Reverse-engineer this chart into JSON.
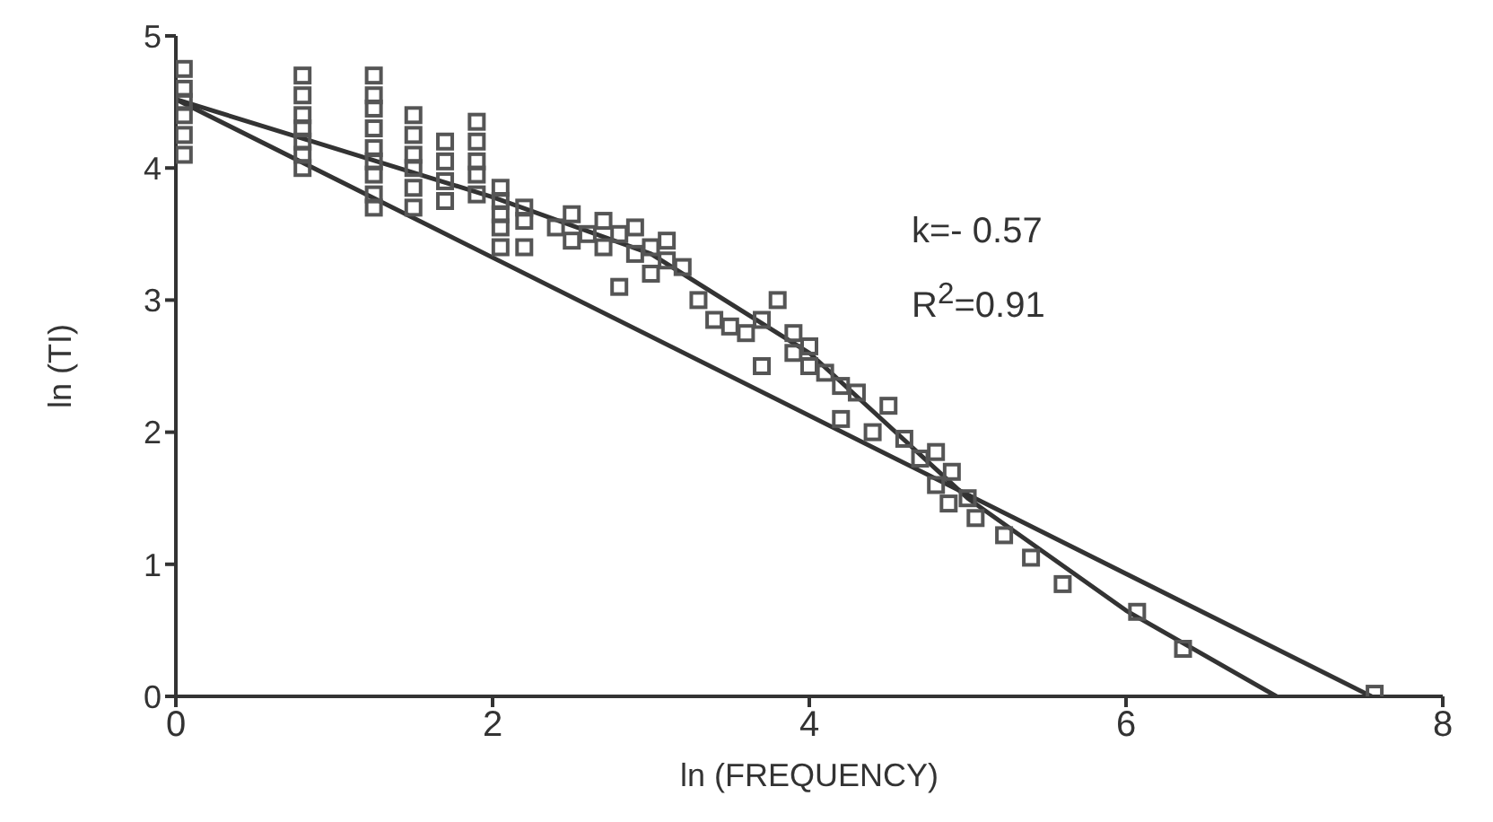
{
  "chart_data": {
    "type": "scatter",
    "xlabel": "ln (FREQUENCY)",
    "ylabel": "ln (TI)",
    "xlim": [
      0,
      8
    ],
    "xticks": [
      0,
      2,
      4,
      6,
      8
    ],
    "ylim": [
      0,
      5
    ],
    "yticks": [
      0,
      1,
      2,
      3,
      4,
      5
    ],
    "annotations": [
      "k=- 0.57",
      "R$^{2}$=0.91"
    ],
    "series": [
      {
        "marker": "square",
        "color": "#555555",
        "x": [
          0.05,
          0.05,
          0.05,
          0.05,
          0.05,
          0.05,
          0.8,
          0.8,
          0.8,
          0.8,
          0.8,
          0.8,
          0.8,
          1.25,
          1.25,
          1.25,
          1.25,
          1.25,
          1.25,
          1.25,
          1.25,
          1.25,
          1.5,
          1.5,
          1.5,
          1.5,
          1.5,
          1.5,
          1.7,
          1.7,
          1.7,
          1.7,
          1.9,
          1.9,
          1.9,
          1.9,
          1.9,
          2.05,
          2.05,
          2.05,
          2.05,
          2.05,
          2.2,
          2.2,
          2.2,
          2.4,
          2.5,
          2.5,
          2.6,
          2.7,
          2.7,
          2.8,
          2.8,
          2.9,
          2.9,
          3.0,
          3.0,
          3.1,
          3.1,
          3.2,
          3.3,
          3.4,
          3.5,
          3.6,
          3.7,
          3.7,
          3.8,
          3.9,
          3.9,
          4.0,
          4.0,
          4.1,
          4.2,
          4.2,
          4.3,
          4.4,
          4.5,
          4.6,
          4.7,
          4.8,
          4.8,
          4.9,
          4.88,
          5.0,
          5.05,
          5.23,
          5.4,
          5.6,
          6.07,
          6.36,
          7.57
        ],
        "values": [
          4.1,
          4.25,
          4.4,
          4.5,
          4.6,
          4.75,
          4.0,
          4.1,
          4.2,
          4.3,
          4.4,
          4.55,
          4.7,
          3.7,
          3.8,
          3.95,
          4.05,
          4.15,
          4.3,
          4.45,
          4.55,
          4.7,
          3.7,
          3.85,
          4.0,
          4.1,
          4.25,
          4.4,
          3.75,
          3.9,
          4.05,
          4.2,
          3.8,
          3.95,
          4.05,
          4.2,
          4.35,
          3.4,
          3.55,
          3.65,
          3.75,
          3.85,
          3.4,
          3.6,
          3.7,
          3.55,
          3.45,
          3.65,
          3.5,
          3.4,
          3.6,
          3.5,
          3.1,
          3.35,
          3.55,
          3.2,
          3.4,
          3.3,
          3.45,
          3.25,
          3.0,
          2.85,
          2.8,
          2.75,
          2.85,
          2.5,
          3.0,
          2.6,
          2.75,
          2.5,
          2.65,
          2.45,
          2.35,
          2.1,
          2.3,
          2.0,
          2.2,
          1.95,
          1.8,
          1.85,
          1.6,
          1.7,
          1.46,
          1.5,
          1.35,
          1.22,
          1.05,
          0.85,
          0.64,
          0.36,
          0.02
        ]
      },
      {
        "type": "line",
        "marker": "none",
        "color": "#333333",
        "x": [
          0,
          7.55
        ],
        "values": [
          4.52,
          0
        ]
      },
      {
        "type": "line",
        "marker": "none",
        "color": "#333333",
        "x": [
          0,
          1,
          2,
          3,
          4,
          5,
          6,
          6.95
        ],
        "values": [
          4.52,
          4.15,
          3.78,
          3.35,
          2.6,
          1.5,
          0.65,
          0
        ]
      }
    ]
  }
}
